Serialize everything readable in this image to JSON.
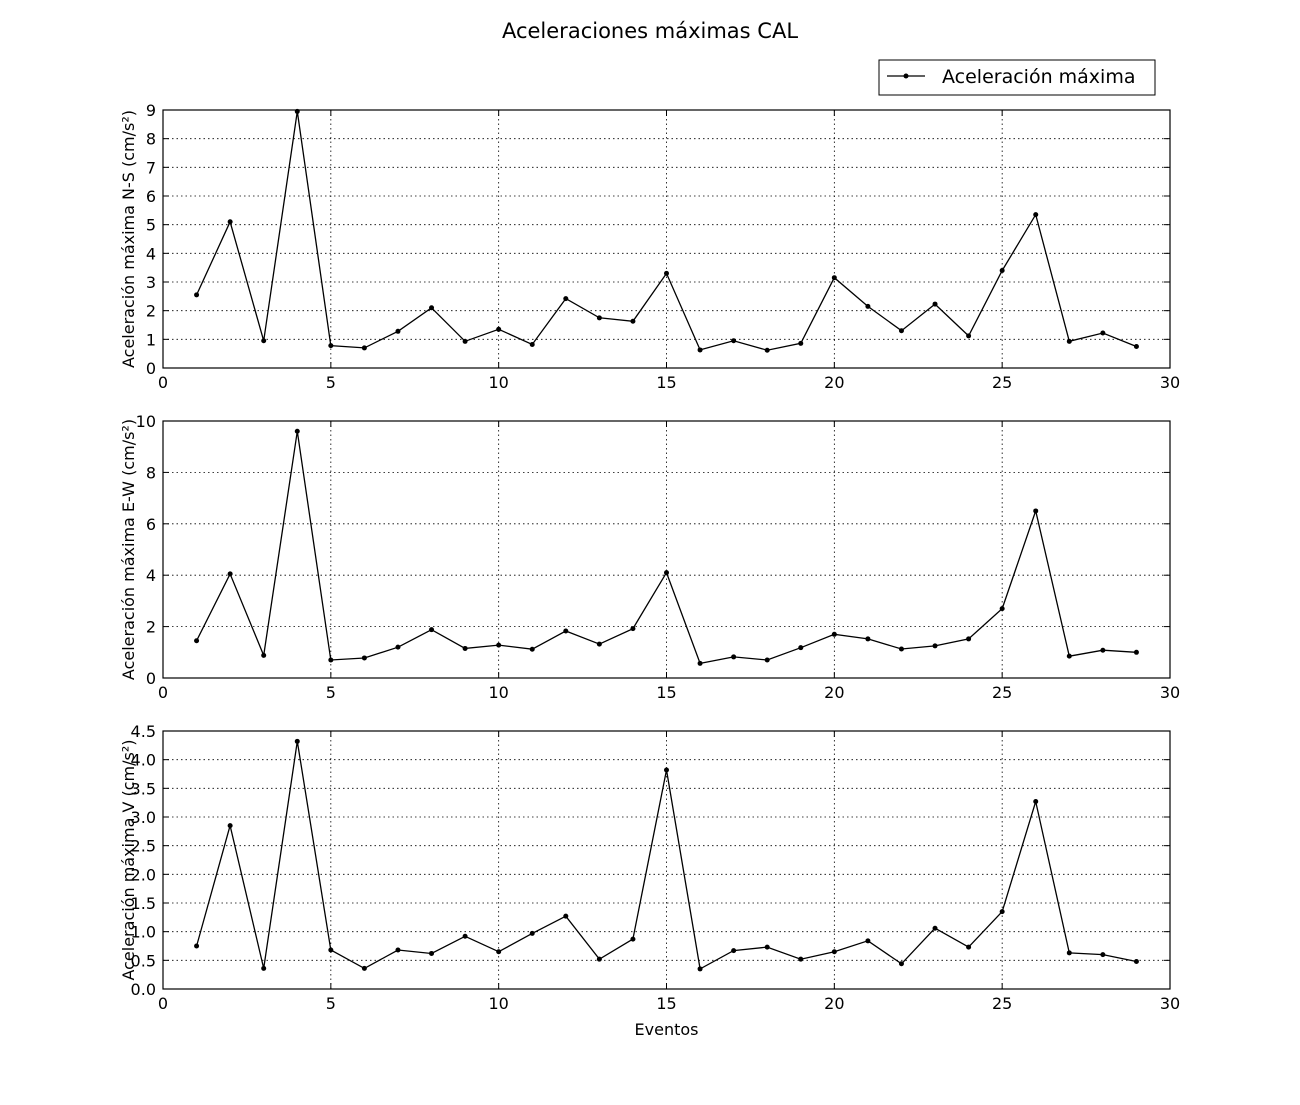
{
  "title": "Aceleraciones máximas CAL",
  "legend": {
    "label": "Aceleración máxima",
    "position": "top-right"
  },
  "xlabel": "Eventos",
  "colors": {
    "line": "#000000",
    "grid": "#000000",
    "background": "#ffffff"
  },
  "chart_data": [
    {
      "type": "line",
      "ylabel": "Aceleración máxima N-S (cm/s²)",
      "xlim": [
        0,
        30
      ],
      "ylim": [
        0,
        9
      ],
      "xticks": [
        0,
        5,
        10,
        15,
        20,
        25,
        30
      ],
      "yticks": [
        0,
        1,
        2,
        3,
        4,
        5,
        6,
        7,
        8,
        9
      ],
      "ytick_labels": [
        "0",
        "1",
        "2",
        "3",
        "4",
        "5",
        "6",
        "7",
        "8",
        "9"
      ],
      "grid": true,
      "x": [
        1,
        2,
        3,
        4,
        5,
        6,
        7,
        8,
        9,
        10,
        11,
        12,
        13,
        14,
        15,
        16,
        17,
        18,
        19,
        20,
        21,
        22,
        23,
        24,
        25,
        26,
        27,
        28,
        29
      ],
      "series": [
        {
          "name": "Aceleración máxima",
          "values": [
            2.55,
            5.1,
            0.95,
            8.95,
            0.78,
            0.7,
            1.28,
            2.1,
            0.93,
            1.35,
            0.82,
            2.42,
            1.75,
            1.63,
            3.3,
            0.63,
            0.95,
            0.62,
            0.86,
            3.15,
            2.15,
            1.3,
            2.23,
            1.12,
            3.4,
            5.35,
            0.93,
            1.22,
            0.75
          ]
        }
      ]
    },
    {
      "type": "line",
      "ylabel": "Aceleración máxima E-W (cm/s²)",
      "xlim": [
        0,
        30
      ],
      "ylim": [
        0,
        10
      ],
      "xticks": [
        0,
        5,
        10,
        15,
        20,
        25,
        30
      ],
      "yticks": [
        0,
        2,
        4,
        6,
        8,
        10
      ],
      "ytick_labels": [
        "0",
        "2",
        "4",
        "6",
        "8",
        "10"
      ],
      "grid": true,
      "x": [
        1,
        2,
        3,
        4,
        5,
        6,
        7,
        8,
        9,
        10,
        11,
        12,
        13,
        14,
        15,
        16,
        17,
        18,
        19,
        20,
        21,
        22,
        23,
        24,
        25,
        26,
        27,
        28,
        29
      ],
      "series": [
        {
          "name": "Aceleración máxima",
          "values": [
            1.45,
            4.05,
            0.88,
            9.6,
            0.7,
            0.78,
            1.2,
            1.88,
            1.15,
            1.28,
            1.12,
            1.83,
            1.32,
            1.92,
            4.1,
            0.57,
            0.82,
            0.7,
            1.18,
            1.7,
            1.52,
            1.13,
            1.25,
            1.52,
            2.7,
            6.5,
            0.85,
            1.08,
            1.0
          ]
        }
      ]
    },
    {
      "type": "line",
      "ylabel": "Aceleración máxima V (cm/s²)",
      "xlim": [
        0,
        30
      ],
      "ylim": [
        0,
        4.5
      ],
      "xticks": [
        0,
        5,
        10,
        15,
        20,
        25,
        30
      ],
      "yticks": [
        0,
        0.5,
        1,
        1.5,
        2,
        2.5,
        3,
        3.5,
        4,
        4.5
      ],
      "ytick_labels": [
        "0.0",
        "0.5",
        "1.0",
        "1.5",
        "2.0",
        "2.5",
        "3.0",
        "3.5",
        "4.0",
        "4.5"
      ],
      "grid": true,
      "x": [
        1,
        2,
        3,
        4,
        5,
        6,
        7,
        8,
        9,
        10,
        11,
        12,
        13,
        14,
        15,
        16,
        17,
        18,
        19,
        20,
        21,
        22,
        23,
        24,
        25,
        26,
        27,
        28,
        29
      ],
      "series": [
        {
          "name": "Aceleración máxima",
          "values": [
            0.75,
            2.85,
            0.36,
            4.32,
            0.68,
            0.36,
            0.68,
            0.62,
            0.92,
            0.65,
            0.97,
            1.27,
            0.52,
            0.87,
            3.82,
            0.35,
            0.67,
            0.73,
            0.52,
            0.65,
            0.84,
            0.44,
            1.06,
            0.73,
            1.35,
            3.27,
            0.63,
            0.6,
            0.48
          ]
        }
      ]
    }
  ]
}
